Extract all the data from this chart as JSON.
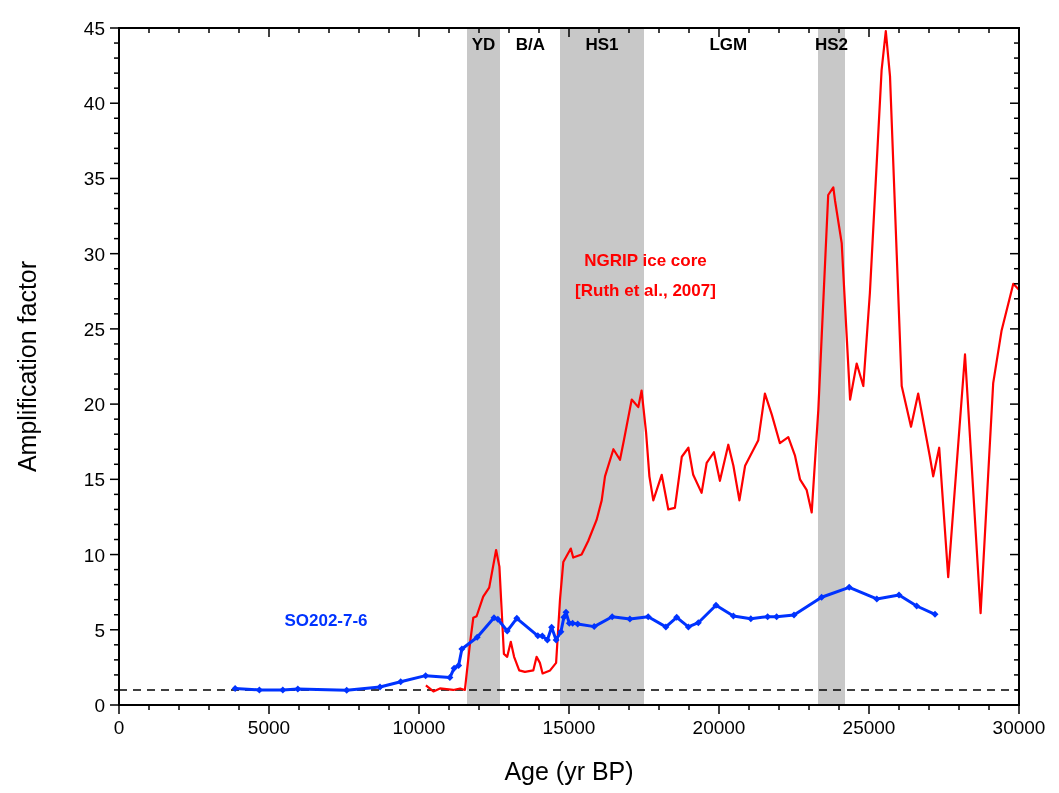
{
  "chart_data": {
    "type": "line",
    "xlabel": "Age (yr BP)",
    "ylabel": "Amplification factor",
    "xlim": [
      0,
      30000
    ],
    "ylim": [
      0,
      45
    ],
    "xticks": [
      0,
      {
        "value": 1000,
        "label": null
      },
      {
        "value": 2000,
        "label": null
      },
      {
        "value": 3000,
        "label": null
      },
      {
        "value": 4000,
        "label": null
      },
      5000,
      {
        "value": 6000,
        "label": null
      },
      {
        "value": 7000,
        "label": null
      },
      {
        "value": 8000,
        "label": null
      },
      {
        "value": 9000,
        "label": null
      },
      10000,
      {
        "value": 11000,
        "label": null
      },
      {
        "value": 12000,
        "label": null
      },
      {
        "value": 13000,
        "label": null
      },
      {
        "value": 14000,
        "label": null
      },
      15000,
      {
        "value": 16000,
        "label": null
      },
      {
        "value": 17000,
        "label": null
      },
      {
        "value": 18000,
        "label": null
      },
      {
        "value": 19000,
        "label": null
      },
      20000,
      {
        "value": 21000,
        "label": null
      },
      {
        "value": 22000,
        "label": null
      },
      {
        "value": 23000,
        "label": null
      },
      {
        "value": 24000,
        "label": null
      },
      25000,
      {
        "value": 26000,
        "label": null
      },
      {
        "value": 27000,
        "label": null
      },
      {
        "value": 28000,
        "label": null
      },
      {
        "value": 29000,
        "label": null
      },
      30000
    ],
    "yticks": [
      0,
      {
        "value": 1,
        "label": null
      },
      {
        "value": 2,
        "label": null
      },
      {
        "value": 3,
        "label": null
      },
      {
        "value": 4,
        "label": null
      },
      5,
      {
        "value": 6,
        "label": null
      },
      {
        "value": 7,
        "label": null
      },
      {
        "value": 8,
        "label": null
      },
      {
        "value": 9,
        "label": null
      },
      10,
      {
        "value": 11,
        "label": null
      },
      {
        "value": 12,
        "label": null
      },
      {
        "value": 13,
        "label": null
      },
      {
        "value": 14,
        "label": null
      },
      15,
      {
        "value": 16,
        "label": null
      },
      {
        "value": 17,
        "label": null
      },
      {
        "value": 18,
        "label": null
      },
      {
        "value": 19,
        "label": null
      },
      20,
      {
        "value": 21,
        "label": null
      },
      {
        "value": 22,
        "label": null
      },
      {
        "value": 23,
        "label": null
      },
      {
        "value": 24,
        "label": null
      },
      25,
      {
        "value": 26,
        "label": null
      },
      {
        "value": 27,
        "label": null
      },
      {
        "value": 28,
        "label": null
      },
      {
        "value": 29,
        "label": null
      },
      30,
      {
        "value": 31,
        "label": null
      },
      {
        "value": 32,
        "label": null
      },
      {
        "value": 33,
        "label": null
      },
      {
        "value": 34,
        "label": null
      },
      35,
      {
        "value": 36,
        "label": null
      },
      {
        "value": 37,
        "label": null
      },
      {
        "value": 38,
        "label": null
      },
      {
        "value": 39,
        "label": null
      },
      40,
      {
        "value": 41,
        "label": null
      },
      {
        "value": 42,
        "label": null
      },
      {
        "value": 43,
        "label": null
      },
      {
        "value": 44,
        "label": null
      },
      45
    ],
    "grid": false,
    "bands": [
      {
        "axis": "x",
        "from": 11600,
        "to": 12700,
        "label": "YD",
        "color": "#c8c8c8"
      },
      {
        "axis": "x",
        "from": 14700,
        "to": 17500,
        "label": "HS1",
        "color": "#c8c8c8"
      },
      {
        "axis": "x",
        "from": 23300,
        "to": 24200,
        "label": "HS2",
        "color": "#c8c8c8"
      }
    ],
    "ref_lines": [
      {
        "axis": "y",
        "value": 1,
        "color": "#000000",
        "line_style": "dashed"
      }
    ],
    "annotations": [
      "B/A",
      "LGM",
      "[Ruth et al., 2007]"
    ],
    "series": [
      {
        "name": "NGRIP ice core",
        "color": "#ff0000",
        "marker": "none",
        "x": [
          10230,
          10480,
          10700,
          11140,
          11370,
          11530,
          11700,
          11810,
          11920,
          12140,
          12340,
          12570,
          12680,
          12830,
          12940,
          13060,
          13170,
          13340,
          13530,
          13810,
          13920,
          14030,
          14120,
          14370,
          14570,
          14700,
          14810,
          15060,
          15140,
          15420,
          15640,
          15920,
          16090,
          16200,
          16480,
          16700,
          16830,
          17090,
          17310,
          17420,
          17570,
          17680,
          17810,
          18090,
          18310,
          18530,
          18760,
          18980,
          19140,
          19420,
          19590,
          19830,
          20030,
          20310,
          20480,
          20680,
          20870,
          21310,
          21530,
          21760,
          22030,
          22310,
          22530,
          22700,
          22920,
          23090,
          23310,
          23640,
          23810,
          23870,
          24090,
          24370,
          24590,
          24810,
          25030,
          25420,
          25560,
          25700,
          26090,
          26400,
          26640,
          27030,
          27140,
          27340,
          27640,
          28200,
          28720,
          29140,
          29420,
          29810,
          30000
        ],
        "values": [
          1.3,
          0.9,
          1.1,
          1.0,
          1.1,
          1.0,
          4.1,
          5.8,
          5.9,
          7.2,
          7.8,
          10.3,
          9.2,
          3.4,
          3.2,
          4.2,
          3.2,
          2.3,
          2.2,
          2.3,
          3.2,
          2.8,
          2.1,
          2.3,
          2.8,
          7.0,
          9.5,
          10.4,
          9.8,
          10.0,
          10.9,
          12.3,
          13.6,
          15.2,
          17.0,
          16.3,
          17.6,
          20.3,
          19.8,
          20.9,
          18.1,
          15.2,
          13.6,
          15.3,
          13.0,
          13.1,
          16.5,
          17.1,
          15.3,
          14.1,
          16.1,
          16.8,
          14.9,
          17.3,
          15.9,
          13.6,
          15.9,
          17.6,
          20.7,
          19.3,
          17.4,
          17.8,
          16.6,
          15.0,
          14.3,
          12.8,
          19.6,
          33.9,
          34.4,
          33.5,
          30.7,
          20.3,
          22.7,
          21.2,
          27.4,
          42.2,
          44.8,
          41.8,
          21.2,
          18.5,
          20.7,
          16.5,
          15.2,
          17.1,
          8.5,
          23.3,
          6.1,
          21.4,
          24.9,
          28.0,
          27.6
        ]
      },
      {
        "name": "SO202-7-6",
        "color": "#0033ff",
        "marker": "diamond",
        "x": [
          3870,
          4680,
          5460,
          5960,
          7590,
          8700,
          9390,
          10220,
          11030,
          11170,
          11320,
          11430,
          11940,
          12500,
          12630,
          12940,
          13260,
          13960,
          14110,
          14280,
          14420,
          14570,
          14730,
          14830,
          14900,
          15010,
          15120,
          15290,
          15840,
          16440,
          17030,
          17640,
          18230,
          18590,
          18980,
          19310,
          19900,
          20480,
          21060,
          21620,
          21920,
          22500,
          23420,
          24340,
          25260,
          26000,
          26590,
          27200
        ],
        "values": [
          1.1,
          1.0,
          1.0,
          1.06,
          0.98,
          1.2,
          1.55,
          1.95,
          1.82,
          2.45,
          2.63,
          3.72,
          4.5,
          5.8,
          5.7,
          4.92,
          5.76,
          4.6,
          4.58,
          4.32,
          5.17,
          4.32,
          4.87,
          5.83,
          6.16,
          5.43,
          5.43,
          5.39,
          5.21,
          5.87,
          5.72,
          5.87,
          5.19,
          5.83,
          5.19,
          5.47,
          6.63,
          5.92,
          5.74,
          5.87,
          5.87,
          5.98,
          7.16,
          7.82,
          7.05,
          7.31,
          6.58,
          6.03
        ]
      }
    ]
  }
}
